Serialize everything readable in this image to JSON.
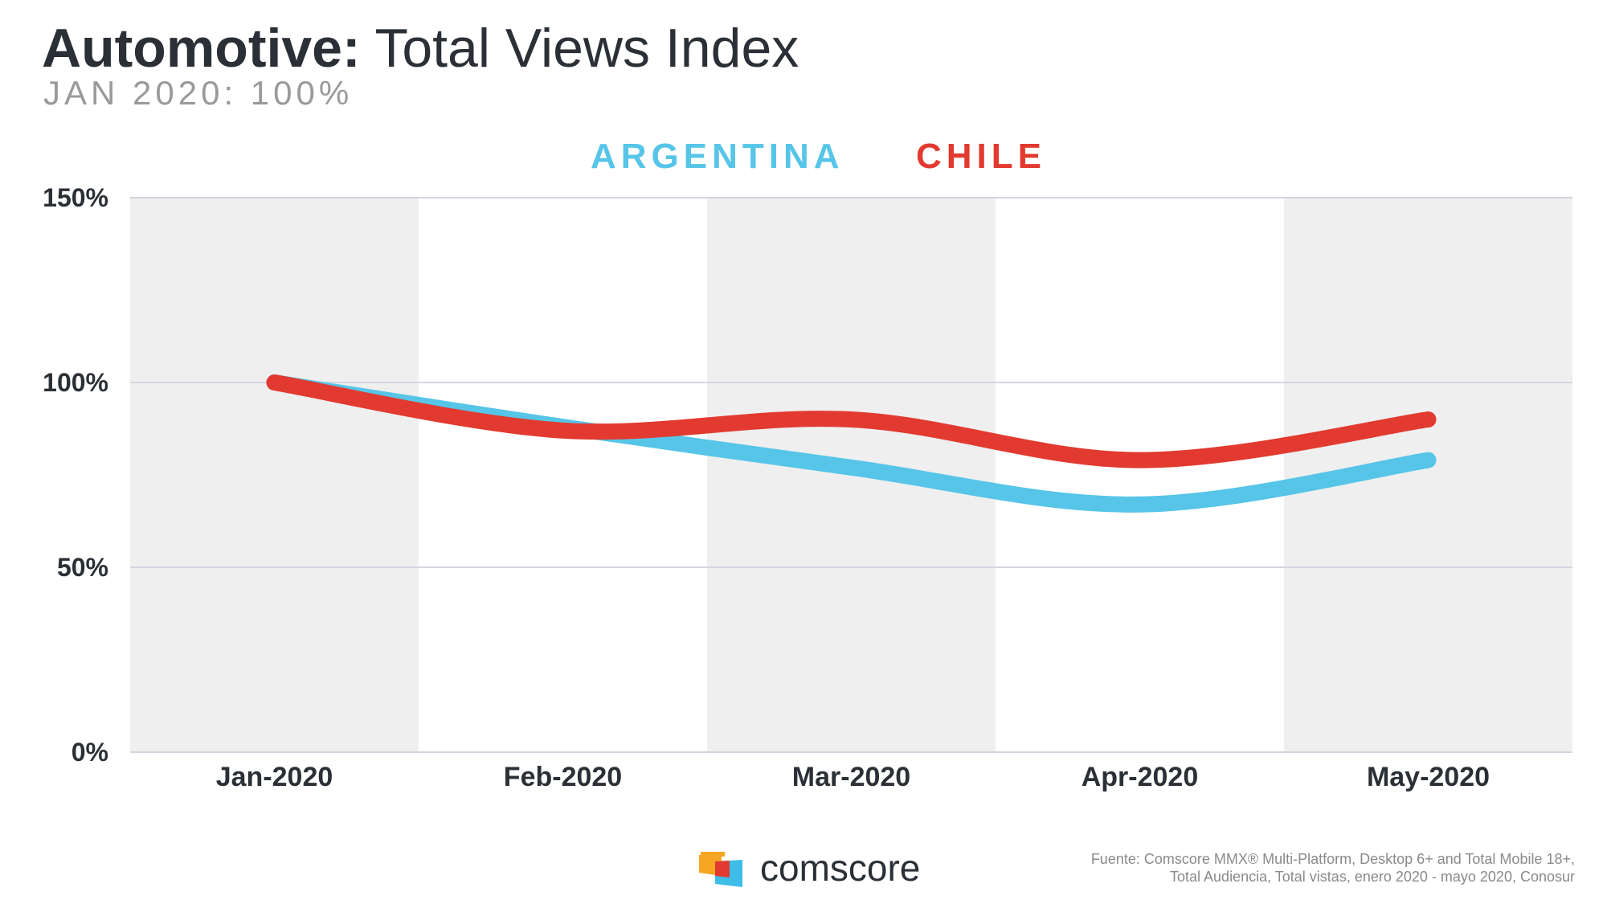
{
  "title": {
    "bold": "Automotive:",
    "rest": "Total Views Index"
  },
  "subtitle": "JAN 2020: 100%",
  "colors": {
    "argentina": "#56c5e8",
    "chile": "#e23a30",
    "band": "#efefef",
    "grid": "#d3d6e0",
    "text": "#2b3037"
  },
  "chart_data": {
    "type": "line",
    "title": "Automotive: Total Views Index",
    "subtitle": "JAN 2020: 100%",
    "categories": [
      "Jan-2020",
      "Feb-2020",
      "Mar-2020",
      "Apr-2020",
      "May-2020"
    ],
    "yticks": [
      "0%",
      "50%",
      "100%",
      "150%"
    ],
    "ytick_values": [
      0,
      50,
      100,
      150
    ],
    "ylim": [
      0,
      150
    ],
    "xlabel": "",
    "ylabel": "",
    "legend_position": "top-center",
    "series": [
      {
        "name": "ARGENTINA",
        "color": "#56c5e8",
        "values": [
          100,
          88,
          77,
          67,
          79
        ]
      },
      {
        "name": "CHILE",
        "color": "#e23a30",
        "values": [
          100,
          87,
          90,
          79,
          90
        ]
      }
    ]
  },
  "logo": {
    "name": "comscore-logo-icon",
    "text": "comscore"
  },
  "source": {
    "line1": "Fuente: Comscore MMX® Multi-Platform, Desktop 6+ and Total Mobile 18+,",
    "line2": "Total Audiencia, Total vistas, enero 2020 - mayo 2020, Conosur"
  }
}
